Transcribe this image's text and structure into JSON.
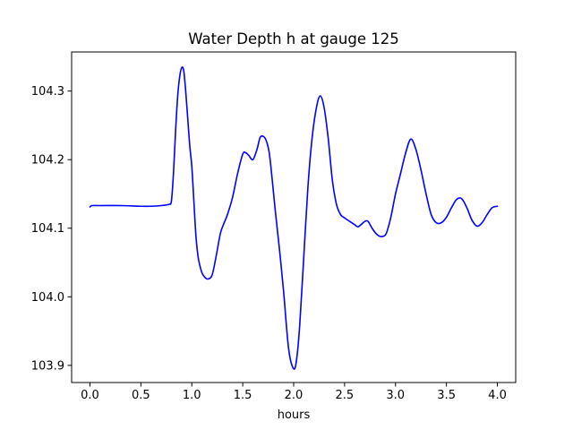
{
  "chart_data": {
    "type": "line",
    "title": "Water Depth h at gauge 125",
    "xlabel": "hours",
    "ylabel": "",
    "xlim": [
      -0.18,
      4.18
    ],
    "ylim": [
      103.875,
      104.357
    ],
    "xticks": [
      0.0,
      0.5,
      1.0,
      1.5,
      2.0,
      2.5,
      3.0,
      3.5,
      4.0
    ],
    "xtick_labels": [
      "0.0",
      "0.5",
      "1.0",
      "1.5",
      "2.0",
      "2.5",
      "3.0",
      "3.5",
      "4.0"
    ],
    "yticks": [
      103.9,
      104.0,
      104.1,
      104.2,
      104.3
    ],
    "ytick_labels": [
      "103.9",
      "104.0",
      "104.1",
      "104.2",
      "104.3"
    ],
    "grid": false,
    "legend": "none",
    "series": [
      {
        "color": "#0000ff",
        "x": [
          0.0,
          0.02,
          0.1,
          0.3,
          0.5,
          0.6,
          0.7,
          0.75,
          0.78,
          0.8,
          0.82,
          0.84,
          0.86,
          0.88,
          0.9,
          0.92,
          0.94,
          0.96,
          0.98,
          1.0,
          1.02,
          1.04,
          1.06,
          1.08,
          1.1,
          1.13,
          1.16,
          1.2,
          1.24,
          1.28,
          1.31,
          1.35,
          1.4,
          1.45,
          1.5,
          1.53,
          1.56,
          1.6,
          1.64,
          1.67,
          1.7,
          1.73,
          1.76,
          1.79,
          1.82,
          1.86,
          1.9,
          1.95,
          2.0,
          2.03,
          2.06,
          2.1,
          2.14,
          2.18,
          2.22,
          2.26,
          2.3,
          2.34,
          2.38,
          2.42,
          2.46,
          2.5,
          2.55,
          2.6,
          2.63,
          2.66,
          2.7,
          2.73,
          2.77,
          2.81,
          2.85,
          2.9,
          2.93,
          2.96,
          3.0,
          3.05,
          3.1,
          3.15,
          3.2,
          3.25,
          3.3,
          3.35,
          3.4,
          3.45,
          3.5,
          3.55,
          3.6,
          3.65,
          3.7,
          3.75,
          3.8,
          3.85,
          3.9,
          3.95,
          4.0
        ],
        "y": [
          104.131,
          104.133,
          104.133,
          104.133,
          104.132,
          104.132,
          104.133,
          104.134,
          104.135,
          104.14,
          104.18,
          104.24,
          104.29,
          104.32,
          104.334,
          104.33,
          104.3,
          104.26,
          104.22,
          104.19,
          104.14,
          104.09,
          104.06,
          104.045,
          104.035,
          104.028,
          104.026,
          104.032,
          104.06,
          104.092,
          104.105,
          104.12,
          104.145,
          104.18,
          104.208,
          104.21,
          104.206,
          104.2,
          104.215,
          104.232,
          104.234,
          104.228,
          104.21,
          104.17,
          104.125,
          104.07,
          104.01,
          103.925,
          103.895,
          103.91,
          103.96,
          104.06,
          104.16,
          104.23,
          104.273,
          104.293,
          104.275,
          104.23,
          104.17,
          104.135,
          104.12,
          104.115,
          104.11,
          104.105,
          104.102,
          104.105,
          104.11,
          104.11,
          104.1,
          104.092,
          104.088,
          104.09,
          104.102,
          104.12,
          104.15,
          104.18,
          104.21,
          104.23,
          104.215,
          104.185,
          104.15,
          104.12,
          104.108,
          104.108,
          104.116,
          104.13,
          104.142,
          104.143,
          104.13,
          104.112,
          104.103,
          104.108,
          104.12,
          104.13,
          104.132
        ]
      }
    ]
  }
}
